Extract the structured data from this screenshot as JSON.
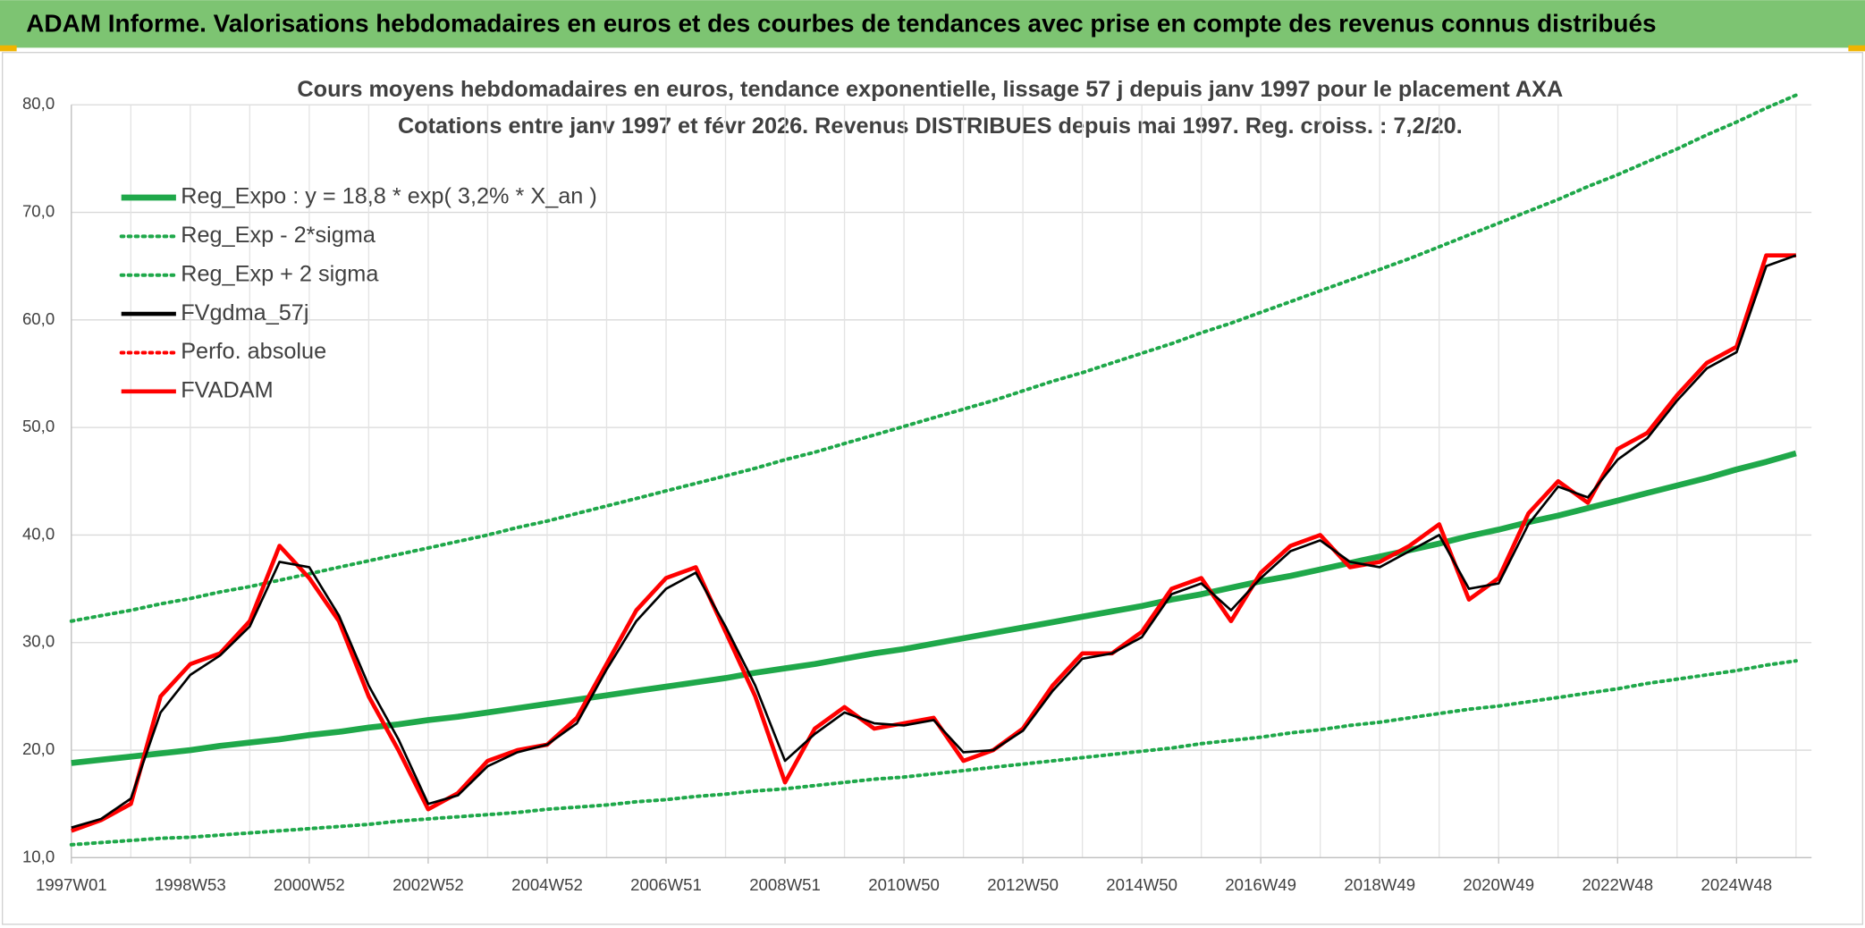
{
  "header": {
    "title": "ADAM Informe. Valorisations hebdomadaires en euros et des courbes de tendances avec prise en compte des revenus connus distribués"
  },
  "chart_data": {
    "type": "line",
    "title": "Cours moyens hebdomadaires en euros, tendance exponentielle, lissage 57 j depuis janv 1997 pour le placement AXA",
    "subtitle": "Cotations entre janv 1997 et févr 2026. Revenus DISTRIBUES depuis mai 1997. Reg. croiss. : 7,2/20.",
    "categories": [
      "1997W01",
      null,
      null,
      null,
      "1998W53",
      null,
      null,
      null,
      "2000W52",
      null,
      null,
      null,
      "2002W52",
      null,
      null,
      null,
      "2004W52",
      null,
      null,
      null,
      "2006W51",
      null,
      null,
      null,
      "2008W51",
      null,
      null,
      null,
      "2010W50",
      null,
      null,
      null,
      "2012W50",
      null,
      null,
      null,
      "2014W50",
      null,
      null,
      null,
      "2016W49",
      null,
      null,
      null,
      "2018W49",
      null,
      null,
      null,
      "2020W49",
      null,
      null,
      null,
      "2022W48",
      null,
      null,
      null,
      "2024W48",
      null,
      null
    ],
    "ylim": [
      10,
      80
    ],
    "yticks": [
      {
        "value": 10,
        "label": "10,0"
      },
      {
        "value": 20,
        "label": "20,0"
      },
      {
        "value": 30,
        "label": "30,0"
      },
      {
        "value": 40,
        "label": "40,0"
      },
      {
        "value": 50,
        "label": "50,0"
      },
      {
        "value": 60,
        "label": "60,0"
      },
      {
        "value": 70,
        "label": "70,0"
      },
      {
        "value": 80,
        "label": "80,0"
      }
    ],
    "grid": true,
    "legend": "upper left",
    "series": [
      {
        "name": "Reg_Expo : y = 18,8 * exp( 3,2% *  X_an )",
        "color": "#1fa84a",
        "dash": false,
        "values": [
          18.8,
          19.1,
          19.4,
          19.7,
          20.0,
          20.4,
          20.7,
          21.0,
          21.4,
          21.7,
          22.1,
          22.4,
          22.8,
          23.1,
          23.5,
          23.9,
          24.3,
          24.7,
          25.1,
          25.5,
          25.9,
          26.3,
          26.7,
          27.2,
          27.6,
          28.0,
          28.5,
          29.0,
          29.4,
          29.9,
          30.4,
          30.9,
          31.4,
          31.9,
          32.4,
          32.9,
          33.4,
          34.0,
          34.5,
          35.1,
          35.7,
          36.2,
          36.8,
          37.4,
          38.0,
          38.6,
          39.2,
          39.9,
          40.5,
          41.2,
          41.8,
          42.5,
          43.2,
          43.9,
          44.6,
          45.3,
          46.1,
          46.8,
          47.6
        ]
      },
      {
        "name": "Reg_Exp - 2*sigma",
        "color": "#1fa84a",
        "dash": true,
        "values": [
          11.2,
          11.4,
          11.6,
          11.8,
          11.9,
          12.1,
          12.3,
          12.5,
          12.7,
          12.9,
          13.1,
          13.4,
          13.6,
          13.8,
          14.0,
          14.2,
          14.5,
          14.7,
          14.9,
          15.2,
          15.4,
          15.7,
          15.9,
          16.2,
          16.4,
          16.7,
          17.0,
          17.3,
          17.5,
          17.8,
          18.1,
          18.4,
          18.7,
          19.0,
          19.3,
          19.6,
          19.9,
          20.2,
          20.6,
          20.9,
          21.2,
          21.6,
          21.9,
          22.3,
          22.6,
          23.0,
          23.4,
          23.8,
          24.1,
          24.5,
          24.9,
          25.3,
          25.7,
          26.2,
          26.6,
          27.0,
          27.4,
          27.9,
          28.3
        ]
      },
      {
        "name": "Reg_Exp + 2 sigma",
        "color": "#1fa84a",
        "dash": true,
        "values": [
          32.0,
          32.5,
          33.0,
          33.6,
          34.1,
          34.7,
          35.2,
          35.8,
          36.4,
          37.0,
          37.6,
          38.2,
          38.8,
          39.4,
          40.0,
          40.7,
          41.3,
          42.0,
          42.7,
          43.4,
          44.1,
          44.8,
          45.5,
          46.2,
          47.0,
          47.7,
          48.5,
          49.3,
          50.1,
          50.9,
          51.7,
          52.5,
          53.4,
          54.3,
          55.1,
          56.0,
          56.9,
          57.8,
          58.8,
          59.7,
          60.7,
          61.7,
          62.7,
          63.7,
          64.7,
          65.7,
          66.8,
          67.9,
          69.0,
          70.1,
          71.2,
          72.4,
          73.5,
          74.7,
          75.9,
          77.2,
          78.4,
          79.7,
          80.9
        ]
      },
      {
        "name": "FVgdma_57j",
        "color": "#000000",
        "dash": false,
        "values": [
          12.8,
          13.6,
          15.5,
          23.5,
          27.0,
          28.8,
          31.5,
          37.5,
          37.0,
          32.5,
          26.0,
          21.0,
          15.0,
          15.8,
          18.5,
          19.8,
          20.5,
          22.5,
          27.5,
          32.0,
          35.0,
          36.5,
          31.5,
          26.0,
          19.0,
          21.5,
          23.5,
          22.5,
          22.3,
          22.8,
          19.8,
          20.0,
          21.8,
          25.5,
          28.5,
          29.0,
          30.5,
          34.5,
          35.5,
          33.0,
          36.0,
          38.5,
          39.5,
          37.5,
          37.0,
          38.5,
          40.0,
          35.0,
          35.5,
          41.0,
          44.5,
          43.5,
          47.0,
          49.0,
          52.5,
          55.5,
          57.0,
          65.0,
          66.0
        ]
      },
      {
        "name": "Perfo. absolue",
        "color": "#ff0000",
        "dash": true,
        "values": [
          null,
          null,
          null,
          null,
          null,
          null,
          null,
          null,
          null,
          null,
          null,
          null,
          null,
          null,
          null,
          null,
          null,
          null,
          null,
          null,
          null,
          null,
          null,
          null,
          null,
          null,
          null,
          null,
          null,
          null,
          null,
          null,
          null,
          null,
          null,
          null,
          null,
          null,
          null,
          null,
          null,
          null,
          null,
          null,
          null,
          null,
          null,
          null,
          null,
          null,
          null,
          null,
          null,
          null,
          null,
          null,
          null,
          null,
          null
        ]
      },
      {
        "name": "FVADAM",
        "color": "#ff0000",
        "dash": false,
        "values": [
          12.5,
          13.5,
          15.0,
          25.0,
          28.0,
          29.0,
          32.0,
          39.0,
          36.0,
          32.0,
          25.0,
          20.0,
          14.5,
          16.0,
          19.0,
          20.0,
          20.5,
          23.0,
          28.0,
          33.0,
          36.0,
          37.0,
          31.0,
          25.0,
          17.0,
          22.0,
          24.0,
          22.0,
          22.5,
          23.0,
          19.0,
          20.0,
          22.0,
          26.0,
          29.0,
          29.0,
          31.0,
          35.0,
          36.0,
          32.0,
          36.5,
          39.0,
          40.0,
          37.0,
          37.5,
          39.0,
          41.0,
          34.0,
          36.0,
          42.0,
          45.0,
          43.0,
          48.0,
          49.5,
          53.0,
          56.0,
          57.5,
          66.0,
          66.0
        ]
      }
    ]
  }
}
